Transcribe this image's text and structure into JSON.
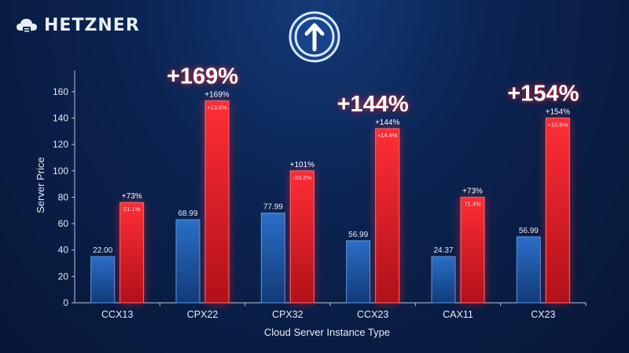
{
  "brand": {
    "name": "HETZNER",
    "logo_icon": "cloud-server-icon",
    "badge_icon": "arrow-up-circle-icon"
  },
  "colors": {
    "blue": "#1f5fb3",
    "red": "#e0202a",
    "glow": "#ff3340"
  },
  "chart_data": {
    "type": "bar",
    "categories": [
      "CCX13",
      "CPX22",
      "CPX32",
      "CCX23",
      "CAX11",
      "CX23"
    ],
    "series": [
      {
        "values": [
          35,
          63,
          68,
          47,
          35,
          50
        ],
        "value_labels": [
          "22.00",
          "68.99",
          "77.99",
          "56.99",
          "24.37",
          "56.99"
        ]
      },
      {
        "values": [
          76,
          153,
          100,
          132,
          80,
          140
        ],
        "top_labels": [
          "+73%",
          "+169%",
          "+101%",
          "+144%",
          "+73%",
          "+154%"
        ],
        "inner_labels": [
          "21.1%",
          "+13.8%",
          "-33.2%",
          "+14.8%",
          "71.4%",
          "+15.8%"
        ]
      }
    ],
    "highlights": [
      {
        "category_index": 1,
        "label": "+169%"
      },
      {
        "category_index": 3,
        "label": "+144%"
      },
      {
        "category_index": 5,
        "label": "+154%"
      }
    ],
    "xlabel": "Cloud Server Instance Type",
    "ylabel": "Server Price",
    "ylim": [
      0,
      170
    ],
    "yticks": [
      0,
      20,
      40,
      60,
      80,
      100,
      120,
      140,
      160
    ],
    "grid": false
  }
}
